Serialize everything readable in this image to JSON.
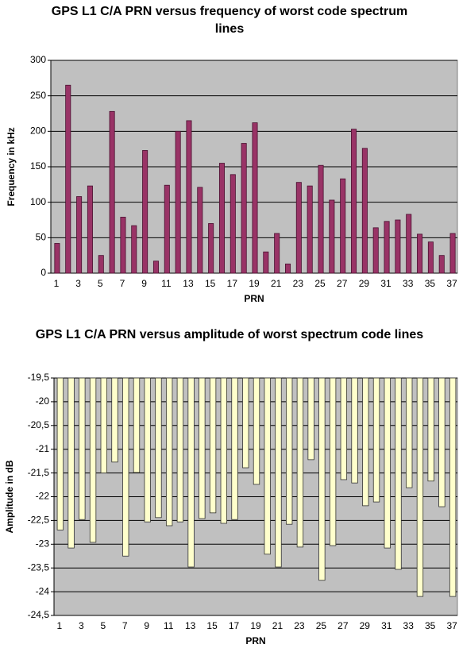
{
  "chart_data": [
    {
      "type": "bar",
      "title": "GPS L1 C/A PRN versus frequency of worst code spectrum lines",
      "x_label": "PRN",
      "y_label": "Frequency in kHz",
      "categories": [
        1,
        null,
        3,
        null,
        5,
        null,
        7,
        null,
        9,
        null,
        11,
        null,
        13,
        null,
        15,
        null,
        17,
        null,
        19,
        null,
        21,
        null,
        23,
        null,
        25,
        null,
        27,
        null,
        29,
        null,
        31,
        null,
        33,
        null,
        35,
        null,
        37
      ],
      "values": [
        42,
        265,
        108,
        123,
        25,
        228,
        79,
        67,
        173,
        17,
        124,
        200,
        215,
        121,
        70,
        155,
        139,
        183,
        212,
        30,
        56,
        13,
        128,
        123,
        152,
        103,
        133,
        203,
        176,
        64,
        73,
        75,
        83,
        55,
        44,
        25,
        56
      ],
      "color": "#993366",
      "ylim": [
        0,
        300
      ],
      "yticks": [
        0,
        50,
        100,
        150,
        200,
        250,
        300
      ],
      "grid": true
    },
    {
      "type": "bar",
      "title": "GPS L1 C/A PRN versus amplitude of worst spectrum code lines",
      "x_label": "PRN",
      "y_label": "Amplitude in dB",
      "categories": [
        1,
        null,
        3,
        null,
        5,
        null,
        7,
        null,
        9,
        null,
        11,
        null,
        13,
        null,
        15,
        null,
        17,
        null,
        19,
        null,
        21,
        null,
        23,
        null,
        25,
        null,
        27,
        null,
        29,
        null,
        31,
        null,
        33,
        null,
        35,
        null,
        37
      ],
      "values": [
        -22.7,
        -23.08,
        -22.48,
        -22.96,
        -21.5,
        -21.27,
        -23.25,
        -21.49,
        -22.53,
        -22.44,
        -22.61,
        -22.53,
        -23.48,
        -22.46,
        -22.34,
        -22.56,
        -22.48,
        -21.39,
        -21.74,
        -23.21,
        -23.48,
        -22.58,
        -23.06,
        -21.22,
        -23.76,
        -23.03,
        -21.64,
        -21.71,
        -22.19,
        -22.11,
        -23.08,
        -23.53,
        -21.81,
        -24.1,
        -21.67,
        -22.21,
        -24.1
      ],
      "color": "#ffffcc",
      "ylim": [
        -24.5,
        -19.5
      ],
      "yticks": [
        {
          "value": -24.5,
          "label": "-24,5"
        },
        -24,
        {
          "value": -23.5,
          "label": "-23,5"
        },
        -23,
        {
          "value": -22.5,
          "label": "-22,5"
        },
        -22,
        {
          "value": -21.5,
          "label": "-21,5"
        },
        -21,
        {
          "value": -20.5,
          "label": "-20,5"
        },
        -20,
        {
          "value": -19.5,
          "label": "-19,5"
        }
      ],
      "grid": true
    }
  ]
}
